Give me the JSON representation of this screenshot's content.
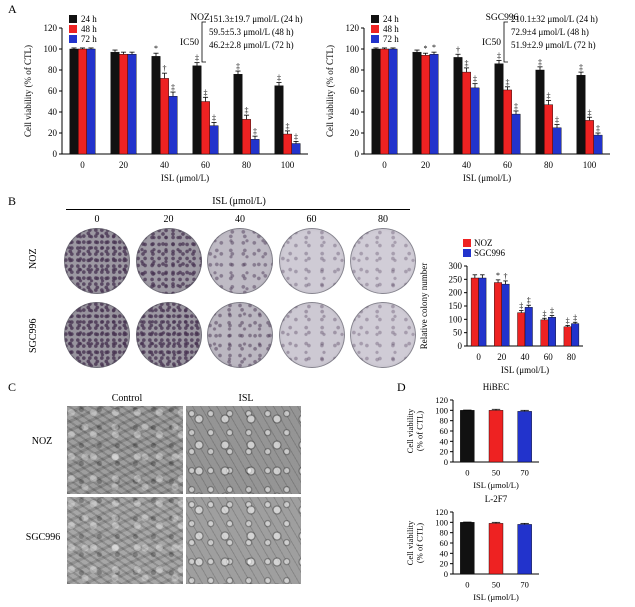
{
  "panel_a": {
    "letter": "A",
    "chart_data": [
      {
        "type": "bar",
        "title": "NOZ",
        "xlabel": "ISL (μmol/L)",
        "ylabel": "Cell viability (% of CTL)",
        "ylim": [
          0,
          120
        ],
        "yticks": [
          0,
          20,
          40,
          60,
          80,
          100,
          120
        ],
        "categories": [
          "0",
          "20",
          "40",
          "60",
          "80",
          "100"
        ],
        "series": [
          {
            "name": "24 h",
            "color": "#111111",
            "values": [
              100,
              97,
              93,
              84,
              76,
              65
            ],
            "errors": [
              1,
              2,
              3,
              3,
              3,
              3
            ]
          },
          {
            "name": "48 h",
            "color": "#ee2222",
            "values": [
              100,
              95,
              72,
              50,
              33,
              19
            ],
            "errors": [
              1,
              2,
              5,
              4,
              4,
              3
            ]
          },
          {
            "name": "72 h",
            "color": "#2233cc",
            "values": [
              100,
              95,
              55,
              27,
              14,
              10
            ],
            "errors": [
              1,
              2,
              4,
              3,
              3,
              2
            ]
          }
        ],
        "sig_marks": [
          [
            "",
            "",
            "*",
            "‡",
            "‡",
            "‡"
          ],
          [
            "",
            "",
            "†",
            "‡",
            "‡",
            "‡"
          ],
          [
            "",
            "",
            "‡",
            "‡",
            "‡",
            "‡"
          ]
        ],
        "ic50_label": "IC50",
        "ic50": [
          "151.3±19.7 μmol/L (24 h)",
          "59.5±5.3 μmol/L (48 h)",
          "46.2±2.8 μmol/L (72 h)"
        ],
        "legend": "top-left"
      },
      {
        "type": "bar",
        "title": "SGC996",
        "xlabel": "ISL (μmol/L)",
        "ylabel": "Cell viability (% of CTL)",
        "ylim": [
          0,
          120
        ],
        "yticks": [
          0,
          20,
          40,
          60,
          80,
          100,
          120
        ],
        "categories": [
          "0",
          "20",
          "40",
          "60",
          "80",
          "100"
        ],
        "series": [
          {
            "name": "24 h",
            "color": "#111111",
            "values": [
              100,
              97,
              92,
              86,
              80,
              75
            ],
            "errors": [
              1,
              2,
              3,
              3,
              3,
              3
            ]
          },
          {
            "name": "48 h",
            "color": "#ee2222",
            "values": [
              100,
              94,
              78,
              61,
              47,
              32
            ],
            "errors": [
              1,
              2,
              4,
              3,
              4,
              3
            ]
          },
          {
            "name": "72 h",
            "color": "#2233cc",
            "values": [
              100,
              95,
              63,
              38,
              25,
              18
            ],
            "errors": [
              1,
              2,
              4,
              3,
              3,
              2
            ]
          }
        ],
        "sig_marks": [
          [
            "",
            "",
            "†",
            "‡",
            "‡",
            "‡"
          ],
          [
            "",
            "*",
            "‡",
            "‡",
            "‡",
            "‡"
          ],
          [
            "",
            "*",
            "‡",
            "‡",
            "‡",
            "‡"
          ]
        ],
        "ic50_label": "IC50",
        "ic50": [
          "210.1±32 μmol/L (24 h)",
          "72.9±4 μmol/L (48 h)",
          "51.9±2.9 μmol/L (72 h)"
        ],
        "legend": "top-left"
      }
    ]
  },
  "panel_b": {
    "letter": "B",
    "concentration_label": "ISL (μmol/L)",
    "concentrations": [
      "0",
      "20",
      "40",
      "60",
      "80"
    ],
    "rows": [
      "NOZ",
      "SGC996"
    ],
    "dish_density": [
      [
        0.85,
        0.8,
        0.35,
        0.12,
        0.08
      ],
      [
        0.9,
        0.85,
        0.4,
        0.15,
        0.1
      ]
    ],
    "chart_data": {
      "type": "bar",
      "title": "",
      "xlabel": "ISL (μmol/L)",
      "ylabel": "Relative colony number",
      "ylim": [
        0,
        300
      ],
      "yticks": [
        0,
        50,
        100,
        150,
        200,
        250,
        300
      ],
      "categories": [
        "0",
        "20",
        "40",
        "60",
        "80"
      ],
      "series": [
        {
          "name": "NOZ",
          "color": "#ee2222",
          "values": [
            255,
            238,
            125,
            98,
            72
          ],
          "errors": [
            12,
            10,
            8,
            6,
            5
          ]
        },
        {
          "name": "SGC996",
          "color": "#2233cc",
          "values": [
            255,
            232,
            145,
            108,
            84
          ],
          "errors": [
            12,
            12,
            8,
            6,
            5
          ]
        }
      ],
      "sig_marks": [
        [
          "",
          "*",
          "‡",
          "‡",
          "‡"
        ],
        [
          "",
          "†",
          "‡",
          "‡",
          "‡"
        ]
      ],
      "legend": "top-right"
    }
  },
  "panel_c": {
    "letter": "C",
    "columns": [
      "Control",
      "ISL"
    ],
    "rows": [
      "NOZ",
      "SGC996"
    ]
  },
  "panel_d": {
    "letter": "D",
    "chart_data": [
      {
        "type": "bar",
        "title": "HiBEC",
        "xlabel": "ISL (μmol/L)",
        "ylabel": "Cell viability (% of CTL)",
        "ylim": [
          0,
          120
        ],
        "yticks": [
          0,
          20,
          40,
          60,
          80,
          100,
          120
        ],
        "categories": [
          "0",
          "50",
          "70"
        ],
        "series": [
          {
            "name": "",
            "colors": [
              "#111111",
              "#ee2222",
              "#2233cc"
            ],
            "values": [
              100,
              100,
              98
            ],
            "errors": [
              0.5,
              2,
              2
            ]
          }
        ]
      },
      {
        "type": "bar",
        "title": "L-2F7",
        "xlabel": "ISL (μmol/L)",
        "ylabel": "Cell viability (% of CTL)",
        "ylim": [
          0,
          120
        ],
        "yticks": [
          0,
          20,
          40,
          60,
          80,
          100,
          120
        ],
        "categories": [
          "0",
          "50",
          "70"
        ],
        "series": [
          {
            "name": "",
            "colors": [
              "#111111",
              "#ee2222",
              "#2233cc"
            ],
            "values": [
              100,
              98,
              96
            ],
            "errors": [
              0.5,
              2,
              2
            ]
          }
        ]
      }
    ]
  }
}
